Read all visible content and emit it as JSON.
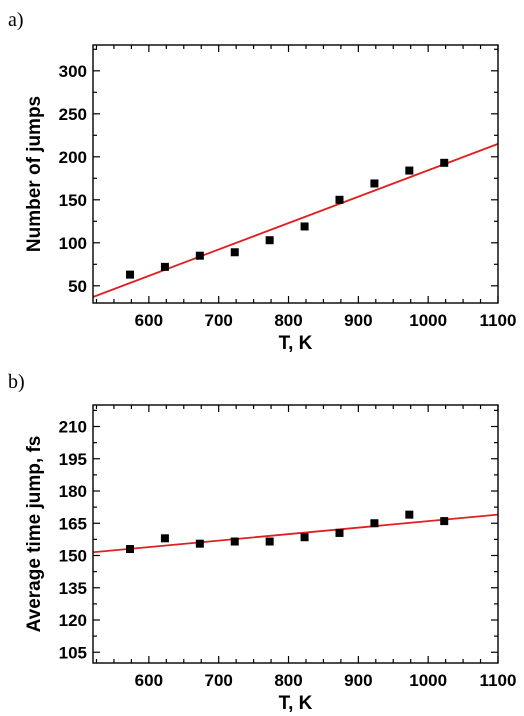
{
  "colors": {
    "marker": "#000000",
    "fit_line": "#e02020",
    "frame": "#000000"
  },
  "chart_data": [
    {
      "panel_label": "a)",
      "type": "scatter",
      "xlabel": "T, K",
      "ylabel": "Number of jumps",
      "xlim": [
        520,
        1100
      ],
      "ylim": [
        30,
        330
      ],
      "x_ticks": [
        600,
        700,
        800,
        900,
        1000,
        1100
      ],
      "y_ticks": [
        50,
        100,
        150,
        200,
        250,
        300
      ],
      "points": {
        "x": [
          573,
          623,
          673,
          723,
          773,
          823,
          873,
          923,
          973,
          1023
        ],
        "y": [
          63,
          72,
          85,
          89,
          103,
          119,
          150,
          169,
          184,
          193
        ]
      },
      "fit": {
        "type": "linear",
        "x": [
          520,
          1100
        ],
        "y": [
          37,
          215
        ]
      }
    },
    {
      "panel_label": "b)",
      "type": "scatter",
      "xlabel": "T, K",
      "ylabel": "Average time jump, fs",
      "xlim": [
        520,
        1100
      ],
      "ylim": [
        100,
        220
      ],
      "x_ticks": [
        600,
        700,
        800,
        900,
        1000,
        1100
      ],
      "y_ticks": [
        105,
        120,
        135,
        150,
        165,
        180,
        195,
        210
      ],
      "points": {
        "x": [
          573,
          623,
          673,
          723,
          773,
          823,
          873,
          923,
          973,
          1023
        ],
        "y": [
          153,
          158,
          155.5,
          156.5,
          156.5,
          158.5,
          160.5,
          165,
          169,
          166
        ]
      },
      "fit": {
        "type": "linear",
        "x": [
          520,
          1100
        ],
        "y": [
          151.5,
          169
        ]
      }
    }
  ]
}
